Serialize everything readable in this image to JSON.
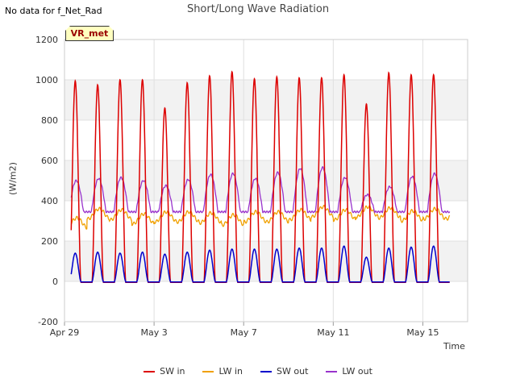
{
  "header": {
    "nodata_text": "No data for f_Net_Rad",
    "badge": "VR_met"
  },
  "chart_data": {
    "type": "line",
    "title": "Short/Long Wave Radiation",
    "xlabel": "Time",
    "ylabel": "(W/m2)",
    "ylim": [
      -200,
      1200
    ],
    "yticks": [
      -200,
      0,
      200,
      400,
      600,
      800,
      1000,
      1200
    ],
    "xlim_days": [
      0,
      18
    ],
    "xticks": [
      {
        "day": 0,
        "label": "Apr 29"
      },
      {
        "day": 4,
        "label": "May 3"
      },
      {
        "day": 8,
        "label": "May 7"
      },
      {
        "day": 12,
        "label": "May 11"
      },
      {
        "day": 16,
        "label": "May 15"
      }
    ],
    "grid": true,
    "legend_position": "bottom",
    "data_days": [
      0.3,
      17.2
    ],
    "series": [
      {
        "name": "SW in",
        "color": "#dd0000",
        "daily_peak": [
          995,
          975,
          1000,
          1000,
          860,
          985,
          1020,
          1040,
          1005,
          1015,
          1010,
          1010,
          1025,
          880,
          1035,
          1025,
          1025
        ]
      },
      {
        "name": "LW in",
        "color": "#f0a000",
        "daily_level": [
          290,
          335,
          330,
          310,
          320,
          320,
          315,
          305,
          320,
          320,
          330,
          345,
          330,
          345,
          340,
          325,
          335
        ]
      },
      {
        "name": "SW out",
        "color": "#0000cc",
        "daily_peak": [
          140,
          145,
          140,
          145,
          135,
          145,
          155,
          160,
          160,
          160,
          165,
          165,
          175,
          120,
          165,
          170,
          175
        ]
      },
      {
        "name": "LW out",
        "color": "#9933cc",
        "daily_peak": [
          500,
          510,
          515,
          500,
          475,
          505,
          530,
          535,
          510,
          540,
          560,
          565,
          515,
          430,
          470,
          520,
          535
        ]
      }
    ]
  }
}
